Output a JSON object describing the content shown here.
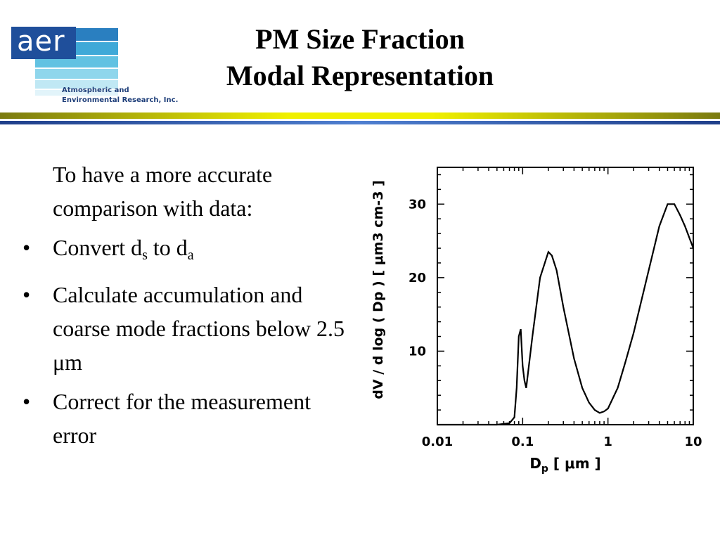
{
  "logo": {
    "mark": "aer",
    "tagline_line1": "Atmospheric and",
    "tagline_line2": "Environmental Research, Inc.",
    "colors": {
      "box": "#1f4f9b",
      "stripes": [
        "#2a7fc0",
        "#3fa9d8",
        "#62c2e2",
        "#8fd6ec",
        "#c0e8f4"
      ]
    }
  },
  "title": {
    "line1": "PM Size Fraction",
    "line2": "Modal Representation"
  },
  "body": {
    "intro": "To have a more accurate comparison with data:",
    "bullet_symbol": "•",
    "bullets": {
      "b1": {
        "text": "Convert d",
        "sub1": "s",
        "mid": " to d",
        "sub2": "a"
      },
      "b2": {
        "text": "Calculate accumulation and coarse mode fractions below 2.5 μm"
      },
      "b3": {
        "text": "Correct for the measurement error"
      }
    }
  },
  "chart_data": {
    "type": "line",
    "x_scale": "log",
    "xlim": [
      0.01,
      10
    ],
    "ylim": [
      0,
      35
    ],
    "x_ticks": [
      "0.01",
      "0.1",
      "1",
      "10"
    ],
    "y_ticks": [
      "10",
      "20",
      "30"
    ],
    "xlabel_main": "D",
    "xlabel_sub": "p",
    "xlabel_unit": " [ μm ]",
    "ylabel": "dV / d log ( Dp ) [ μm3 cm-3 ]",
    "series": [
      {
        "x": [
          0.01,
          0.05,
          0.07,
          0.08,
          0.085,
          0.09,
          0.095,
          0.1,
          0.105,
          0.11,
          0.13,
          0.16,
          0.2,
          0.22,
          0.25,
          0.3,
          0.4,
          0.5,
          0.6,
          0.7,
          0.8,
          0.9,
          1.0,
          1.3,
          1.6,
          2,
          3,
          4,
          5,
          6,
          7,
          8,
          10
        ],
        "y": [
          0,
          0,
          0.2,
          1,
          5,
          12,
          13,
          8,
          6,
          5,
          12,
          20,
          23.5,
          23,
          21,
          16,
          9,
          5,
          3,
          2,
          1.6,
          1.8,
          2.2,
          5,
          8.5,
          12.5,
          21,
          27,
          30,
          30,
          28.5,
          27,
          24
        ]
      }
    ]
  }
}
